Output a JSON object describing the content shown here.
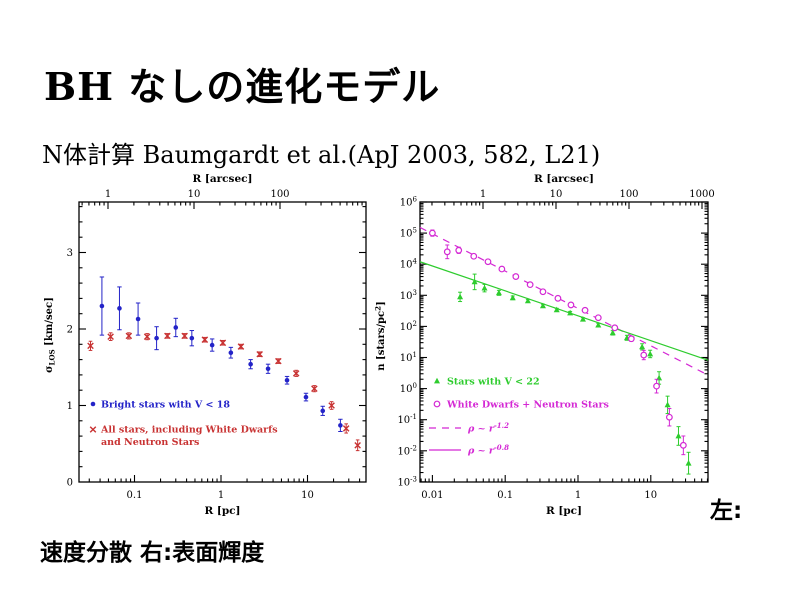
{
  "slide": {
    "title": "BH なしの進化モデル",
    "subtitle": "N体計算 Baumgardt et al.(ApJ 2003, 582, L21)",
    "caption_side": "左:",
    "caption_bottom": "速度分散 右:表面輝度"
  },
  "colors": {
    "blue": "#2323c8",
    "red": "#c83232",
    "green": "#2ecc2e",
    "magenta": "#d428d4",
    "axis": "#000000"
  },
  "chart_data": [
    {
      "type": "scatter",
      "panel": "left",
      "subject": "velocity dispersion profile",
      "top_axis_label": "R [arcsec]",
      "x_axis_label": "R [pc]",
      "y_axis_label": {
        "pre": "σ",
        "sub": "LOS",
        "post": " [km/sec]"
      },
      "x_scale": "log",
      "y_scale": "linear",
      "x_range_pc": [
        0.023,
        47
      ],
      "top_range_arcsec": [
        0.46,
        1000
      ],
      "y_range": [
        0,
        3.66
      ],
      "x_ticks_bottom": [
        0.1,
        1,
        10
      ],
      "x_ticks_top": [
        1,
        10,
        100
      ],
      "y_ticks": [
        0,
        1,
        2,
        3
      ],
      "grid": false,
      "legend_position": "lower-left-inside",
      "series": [
        {
          "name": "Bright stars with V < 18",
          "marker": "filled-circle",
          "color_key": "blue",
          "R_pc": [
            0.042,
            0.067,
            0.11,
            0.18,
            0.3,
            0.46,
            0.79,
            1.3,
            2.2,
            3.5,
            5.8,
            9.6,
            15,
            24
          ],
          "sigma": [
            2.3,
            2.27,
            2.13,
            1.88,
            2.02,
            1.88,
            1.79,
            1.69,
            1.54,
            1.48,
            1.33,
            1.11,
            0.93,
            0.74
          ],
          "err": [
            0.38,
            0.28,
            0.21,
            0.15,
            0.12,
            0.1,
            0.08,
            0.07,
            0.06,
            0.06,
            0.05,
            0.05,
            0.06,
            0.08
          ],
          "legend_lines": [
            "Bright stars with V < 18"
          ]
        },
        {
          "name": "All stars, including White Dwarfs and Neutron Stars",
          "marker": "x",
          "color_key": "red",
          "R_pc": [
            0.031,
            0.053,
            0.086,
            0.14,
            0.24,
            0.38,
            0.65,
            1.05,
            1.7,
            2.8,
            4.6,
            7.4,
            12,
            19,
            28,
            38
          ],
          "sigma": [
            1.78,
            1.9,
            1.91,
            1.9,
            1.91,
            1.91,
            1.86,
            1.82,
            1.77,
            1.67,
            1.58,
            1.42,
            1.22,
            1.0,
            0.7,
            0.48
          ],
          "err": [
            0.06,
            0.05,
            0.04,
            0.04,
            0.03,
            0.03,
            0.03,
            0.03,
            0.03,
            0.03,
            0.03,
            0.04,
            0.04,
            0.05,
            0.06,
            0.07
          ],
          "legend_lines": [
            "All stars, including White Dwarfs",
            "and Neutron Stars"
          ]
        }
      ]
    },
    {
      "type": "scatter",
      "panel": "right",
      "subject": "projected stellar density profile",
      "top_axis_label": "R [arcsec]",
      "x_axis_label": "R [pc]",
      "y_axis_label": {
        "pre": "n [stars/pc",
        "sup": "2",
        "post": "]"
      },
      "x_scale": "log",
      "y_scale": "log",
      "x_range_pc": [
        0.0068,
        61
      ],
      "top_range_arcsec": [
        0.137,
        1210
      ],
      "y_range": [
        0.001,
        1000000
      ],
      "x_ticks_bottom": [
        0.01,
        0.1,
        1,
        10
      ],
      "x_ticks_top": [
        1,
        10,
        100,
        1000
      ],
      "y_tick_exponents": [
        6,
        5,
        4,
        3,
        2,
        1,
        0,
        -1,
        -2,
        -3
      ],
      "grid": false,
      "legend_position": "lower-left-inside",
      "series": [
        {
          "name": "Stars with V < 22",
          "marker": "filled-triangle",
          "color_key": "green",
          "R_pc": [
            0.024,
            0.038,
            0.052,
            0.082,
            0.127,
            0.205,
            0.33,
            0.51,
            0.78,
            1.17,
            1.9,
            3.0,
            4.7,
            7.6,
            9.8,
            13,
            17,
            24,
            33
          ],
          "n": [
            890,
            2700,
            1700,
            1200,
            830,
            660,
            460,
            340,
            270,
            170,
            110,
            62,
            43,
            22,
            13,
            2.2,
            0.3,
            0.03,
            0.004
          ],
          "err_dex": [
            0.15,
            0.25,
            0.12,
            0.08,
            0.06,
            0.05,
            0.05,
            0.05,
            0.05,
            0.05,
            0.06,
            0.07,
            0.08,
            0.1,
            0.12,
            0.2,
            0.28,
            0.3,
            0.35
          ]
        },
        {
          "name": "White Dwarfs + Neutron Stars",
          "marker": "open-circle",
          "color_key": "magenta",
          "R_pc": [
            0.01,
            0.016,
            0.023,
            0.037,
            0.058,
            0.09,
            0.14,
            0.22,
            0.33,
            0.53,
            0.8,
            1.25,
            1.9,
            3.2,
            5.4,
            8.0,
            12,
            18,
            28
          ],
          "n": [
            100000,
            25000,
            28000,
            18000,
            12000,
            7000,
            4000,
            2200,
            1300,
            800,
            490,
            330,
            190,
            90,
            40,
            12,
            1.2,
            0.12,
            0.015
          ],
          "err_dex": [
            0.1,
            0.22,
            0.1,
            0.07,
            0.05,
            0.05,
            0.04,
            0.04,
            0.04,
            0.04,
            0.04,
            0.04,
            0.05,
            0.06,
            0.08,
            0.15,
            0.22,
            0.28,
            0.3
          ]
        }
      ],
      "lines": [
        {
          "label_prefix": "ρ ~ r",
          "label_exponent": "-1.2",
          "style": "dashed",
          "plot_color_key": "magenta",
          "legend_color_key": "magenta",
          "anchor_R_pc": 0.01,
          "anchor_n": 95000,
          "slope": -1.2
        },
        {
          "label_prefix": "ρ ~ r",
          "label_exponent": "-0.8",
          "style": "solid",
          "plot_color_key": "green",
          "legend_color_key": "magenta",
          "anchor_R_pc": 1,
          "anchor_n": 220,
          "slope": -0.8
        }
      ]
    }
  ]
}
